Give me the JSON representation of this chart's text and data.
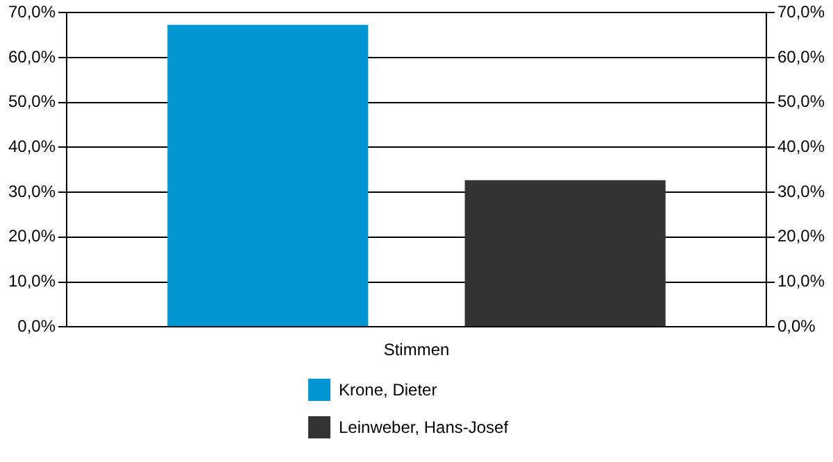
{
  "chart_data": {
    "type": "bar",
    "categories": [
      "Stimmen"
    ],
    "series": [
      {
        "name": "Krone, Dieter",
        "color": "#0096d2",
        "values": [
          67.3
        ]
      },
      {
        "name": "Leinweber, Hans-Josef",
        "color": "#333333",
        "values": [
          32.7
        ]
      }
    ],
    "ylim": [
      0,
      70
    ],
    "yticks": [
      {
        "value": 0,
        "label": "0,0%"
      },
      {
        "value": 10,
        "label": "10,0%"
      },
      {
        "value": 20,
        "label": "20,0%"
      },
      {
        "value": 30,
        "label": "30,0%"
      },
      {
        "value": 40,
        "label": "40,0%"
      },
      {
        "value": 50,
        "label": "50,0%"
      },
      {
        "value": 60,
        "label": "60,0%"
      },
      {
        "value": 70,
        "label": "70,0%"
      }
    ],
    "grid": "y",
    "legend": "bottom"
  }
}
